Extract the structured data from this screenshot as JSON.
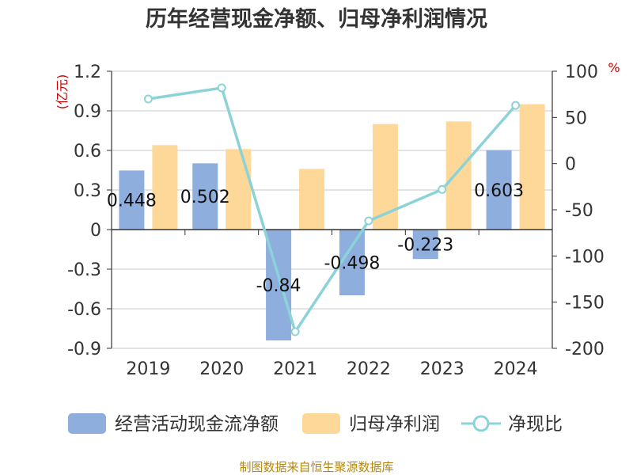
{
  "chart_data": {
    "type": "bar",
    "title": "历年经营现金净额、归母净利润情况",
    "categories": [
      "2019",
      "2020",
      "2021",
      "2022",
      "2023",
      "2024"
    ],
    "series": [
      {
        "name": "经营活动现金流净额",
        "type": "bar",
        "axis": "left",
        "values": [
          0.448,
          0.502,
          -0.84,
          -0.498,
          -0.223,
          0.603
        ],
        "labels": [
          "0.448",
          "0.502",
          "-0.84",
          "-0.498",
          "-0.223",
          "0.603"
        ],
        "color": "#8eaede"
      },
      {
        "name": "归母净利润",
        "type": "bar",
        "axis": "left",
        "values": [
          0.64,
          0.61,
          0.46,
          0.8,
          0.82,
          0.95
        ],
        "color": "#fdd898"
      },
      {
        "name": "净现比",
        "type": "line",
        "axis": "right",
        "values": [
          70,
          82,
          -182,
          -62,
          -28,
          63
        ],
        "color": "#8cd3d8"
      }
    ],
    "y_left": {
      "unit": "(亿元)",
      "min": -0.9,
      "max": 1.2,
      "ticks": [
        "1.2",
        "0.9",
        "0.6",
        "0.3",
        "0",
        "-0.3",
        "-0.6",
        "-0.9"
      ]
    },
    "y_right": {
      "unit": "%",
      "min": -200,
      "max": 100,
      "ticks": [
        "100",
        "50",
        "0",
        "-50",
        "-100",
        "-150",
        "-200"
      ]
    },
    "legend_position": "bottom",
    "grid": true
  },
  "source_text": "制图数据来自恒生聚源数据库"
}
